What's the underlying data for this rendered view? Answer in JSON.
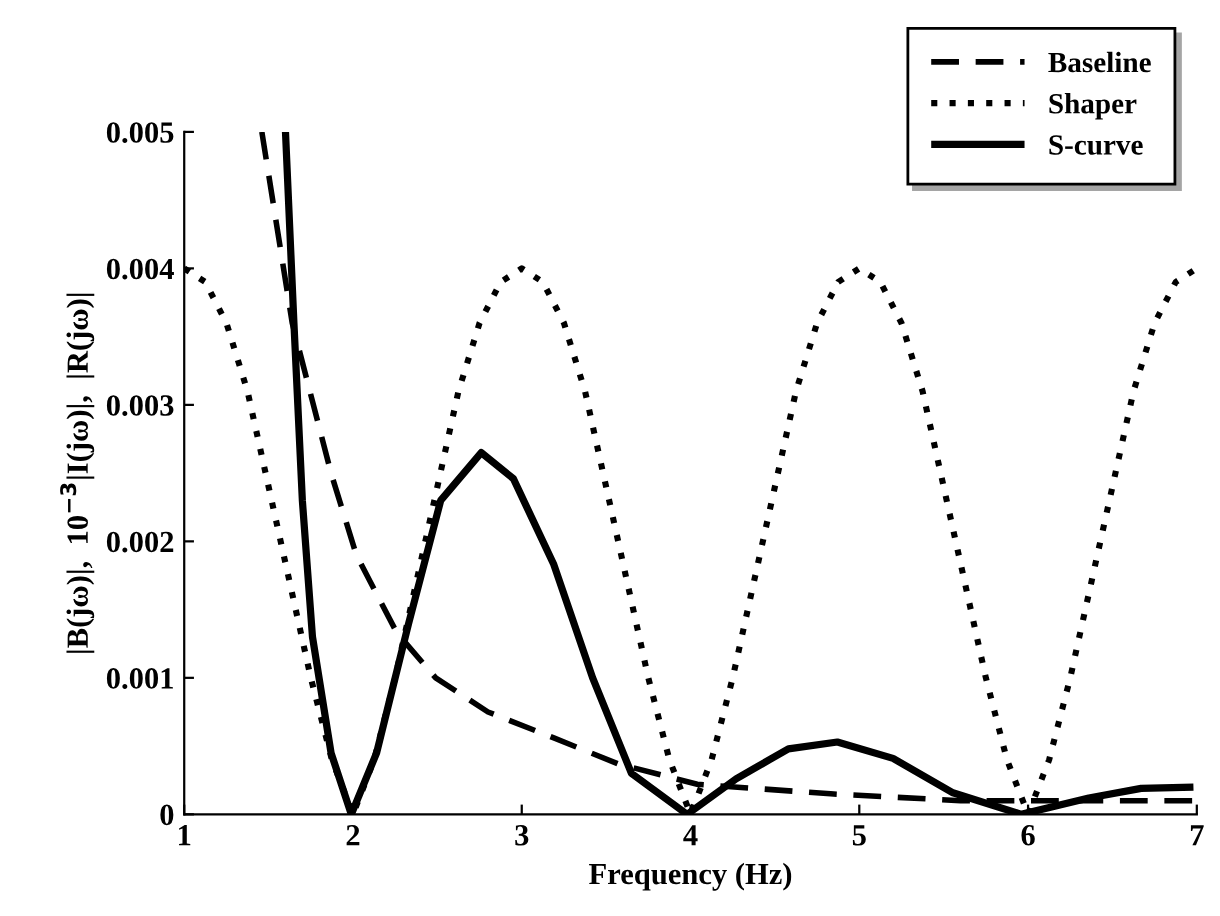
{
  "chart_data": {
    "type": "line",
    "xlabel": "Frequency (Hz)",
    "ylabel": "|B(jω)|,  10$^{−3}$|I(jω)|,  |R(jω)|",
    "xlim": [
      1,
      7
    ],
    "ylim": [
      0,
      0.005
    ],
    "xticks": [
      1,
      2,
      3,
      4,
      5,
      6,
      7
    ],
    "yticks": [
      0,
      0.001,
      0.002,
      0.003,
      0.004,
      0.005
    ],
    "grid": false,
    "legend": "top right",
    "series": [
      {
        "name": "Baseline",
        "color": "#000000",
        "line_style": "dashed",
        "x": [
          1.46,
          1.64,
          1.87,
          2.02,
          2.26,
          2.49,
          2.8,
          3.19,
          3.57,
          4.04,
          4.83,
          5.6,
          7
        ],
        "values": [
          0.005,
          0.0036,
          0.0025,
          0.0019,
          0.00133,
          0.001,
          0.00075,
          0.00056,
          0.00037,
          0.00022,
          0.00015,
          0.0001,
          0.0001
        ]
      },
      {
        "name": "Shaper",
        "color": "#000000",
        "line_style": "dotted",
        "x": [
          1,
          1.125,
          1.25,
          1.375,
          1.5,
          1.625,
          1.75,
          1.875,
          2,
          2.125,
          2.25,
          2.375,
          2.5,
          2.625,
          2.75,
          2.875,
          3,
          3.125,
          3.25,
          3.375,
          3.5,
          3.625,
          3.75,
          3.875,
          4,
          4.125,
          4.25,
          4.375,
          4.5,
          4.625,
          4.75,
          4.875,
          5,
          5.125,
          5.25,
          5.375,
          5.5,
          5.625,
          5.75,
          5.875,
          6,
          6.125,
          6.25,
          6.375,
          6.5,
          6.625,
          6.75,
          6.875,
          7
        ],
        "values": [
          0.004,
          0.0039,
          0.0036,
          0.0031,
          0.0024,
          0.0017,
          0.001,
          0.0004,
          0,
          0.0004,
          0.001,
          0.0017,
          0.0024,
          0.0031,
          0.0036,
          0.0039,
          0.004,
          0.0039,
          0.0036,
          0.0031,
          0.0024,
          0.0017,
          0.001,
          0.0004,
          0,
          0.0004,
          0.001,
          0.0017,
          0.0024,
          0.0031,
          0.0036,
          0.0039,
          0.004,
          0.0039,
          0.0036,
          0.0031,
          0.0024,
          0.0017,
          0.001,
          0.0004,
          0,
          0.0004,
          0.001,
          0.0017,
          0.0024,
          0.0031,
          0.0036,
          0.0039,
          0.004
        ]
      },
      {
        "name": "S-curve",
        "color": "#000000",
        "line_style": "solid",
        "x": [
          1.6,
          1.65,
          1.7,
          1.76,
          1.87,
          1.99,
          2.14,
          2.33,
          2.52,
          2.76,
          2.95,
          3.19,
          3.42,
          3.65,
          3.98,
          4.27,
          4.58,
          4.87,
          5.2,
          5.55,
          5.96,
          6.36,
          6.67,
          6.98
        ],
        "values": [
          0.005,
          0.0036,
          0.0023,
          0.0013,
          0.00045,
          0,
          0.00045,
          0.0014,
          0.0023,
          0.00265,
          0.00246,
          0.00183,
          0.001,
          0.0003,
          0,
          0.00026,
          0.00048,
          0.00053,
          0.00041,
          0.00016,
          0,
          0.00012,
          0.00019,
          0.0002
        ]
      }
    ]
  }
}
